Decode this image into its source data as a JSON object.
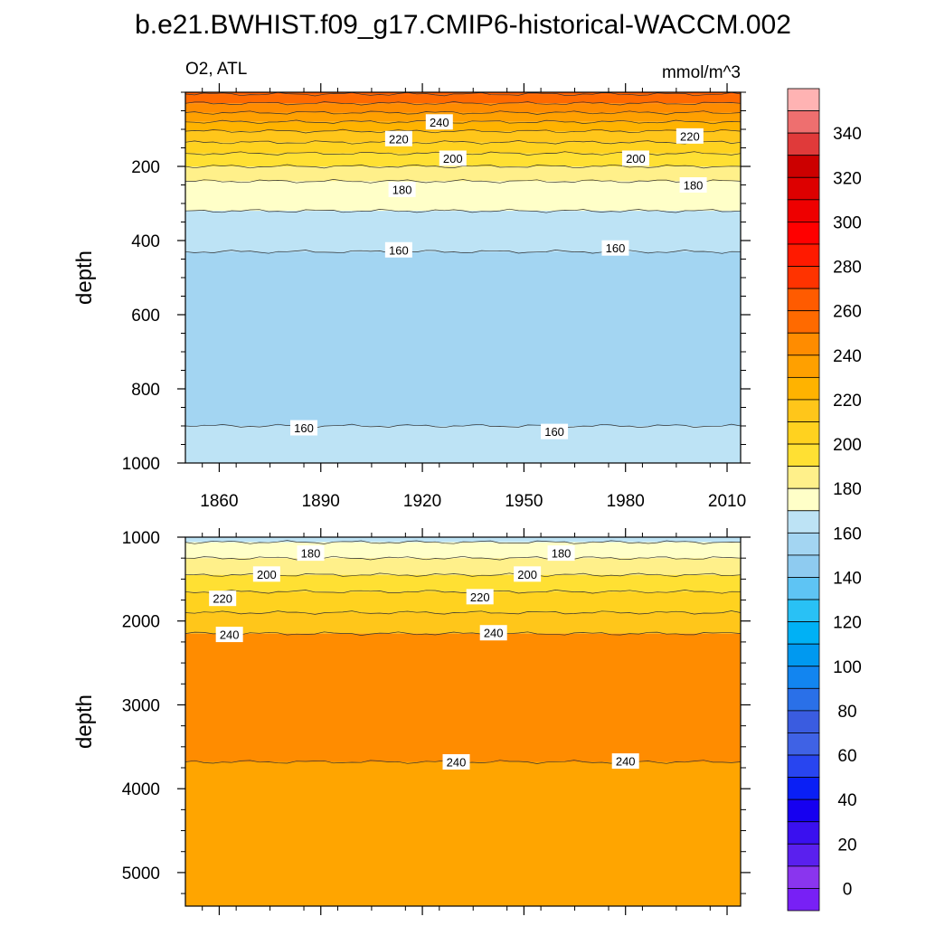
{
  "title": "b.e21.BWHIST.f09_g17.CMIP6-historical-WACCM.002",
  "chart_data": [
    {
      "type": "contour",
      "panel": "top",
      "left_label": "O2, ATL",
      "right_label": "mmol/m^3",
      "ylabel": "depth",
      "xlim": [
        1850,
        2014
      ],
      "ylim": [
        1000,
        0
      ],
      "x_ticks": [
        "1860",
        "1890",
        "1920",
        "1950",
        "1980",
        "2010"
      ],
      "x_tick_values": [
        1860,
        1890,
        1920,
        1950,
        1980,
        2010
      ],
      "y_ticks": [
        "200",
        "400",
        "600",
        "800",
        "1000"
      ],
      "y_tick_values": [
        200,
        400,
        600,
        800,
        1000
      ],
      "bands": [
        {
          "from_depth": 0,
          "to_depth": 5,
          "color": "#ff5b00"
        },
        {
          "from_depth": 5,
          "to_depth": 30,
          "color": "#ff6a00"
        },
        {
          "from_depth": 30,
          "to_depth": 55,
          "color": "#ff8c00"
        },
        {
          "from_depth": 55,
          "to_depth": 80,
          "color": "#ffa000"
        },
        {
          "from_depth": 80,
          "to_depth": 105,
          "color": "#ffb300"
        },
        {
          "from_depth": 105,
          "to_depth": 135,
          "color": "#ffc61a"
        },
        {
          "from_depth": 135,
          "to_depth": 165,
          "color": "#ffd21f"
        },
        {
          "from_depth": 165,
          "to_depth": 200,
          "color": "#ffe033"
        },
        {
          "from_depth": 200,
          "to_depth": 240,
          "color": "#fff08a"
        },
        {
          "from_depth": 240,
          "to_depth": 320,
          "color": "#ffffc8"
        },
        {
          "from_depth": 320,
          "to_depth": 430,
          "color": "#bde3f5"
        },
        {
          "from_depth": 430,
          "to_depth": 900,
          "color": "#a3d5f2"
        },
        {
          "from_depth": 900,
          "to_depth": 1000,
          "color": "#bde3f5"
        }
      ],
      "contour_labels": [
        {
          "text": "240",
          "x": 1925,
          "depth": 80
        },
        {
          "text": "220",
          "x": 1913,
          "depth": 125
        },
        {
          "text": "220",
          "x": 1999,
          "depth": 118
        },
        {
          "text": "200",
          "x": 1929,
          "depth": 178
        },
        {
          "text": "200",
          "x": 1983,
          "depth": 178
        },
        {
          "text": "180",
          "x": 1914,
          "depth": 262
        },
        {
          "text": "180",
          "x": 2000,
          "depth": 250
        },
        {
          "text": "160",
          "x": 1913,
          "depth": 425
        },
        {
          "text": "160",
          "x": 1977,
          "depth": 420
        },
        {
          "text": "160",
          "x": 1885,
          "depth": 905
        },
        {
          "text": "160",
          "x": 1959,
          "depth": 915
        }
      ]
    },
    {
      "type": "contour",
      "panel": "bottom",
      "ylabel": "depth",
      "xlim": [
        1850,
        2014
      ],
      "ylim": [
        5400,
        1000
      ],
      "y_ticks": [
        "1000",
        "2000",
        "3000",
        "4000",
        "5000"
      ],
      "y_tick_values": [
        1000,
        2000,
        3000,
        4000,
        5000
      ],
      "bands": [
        {
          "from_depth": 1000,
          "to_depth": 1060,
          "color": "#bde3f5"
        },
        {
          "from_depth": 1060,
          "to_depth": 1250,
          "color": "#ffffc8"
        },
        {
          "from_depth": 1250,
          "to_depth": 1450,
          "color": "#fff08a"
        },
        {
          "from_depth": 1450,
          "to_depth": 1650,
          "color": "#ffe033"
        },
        {
          "from_depth": 1650,
          "to_depth": 1900,
          "color": "#ffd21f"
        },
        {
          "from_depth": 1900,
          "to_depth": 2150,
          "color": "#ffc61a"
        },
        {
          "from_depth": 2150,
          "to_depth": 3680,
          "color": "#ff8c00"
        },
        {
          "from_depth": 3680,
          "to_depth": 5400,
          "color": "#ffa500"
        }
      ],
      "contour_labels": [
        {
          "text": "180",
          "x": 1887,
          "depth": 1190
        },
        {
          "text": "180",
          "x": 1961,
          "depth": 1190
        },
        {
          "text": "200",
          "x": 1874,
          "depth": 1440
        },
        {
          "text": "200",
          "x": 1951,
          "depth": 1440
        },
        {
          "text": "220",
          "x": 1861,
          "depth": 1730
        },
        {
          "text": "220",
          "x": 1937,
          "depth": 1710
        },
        {
          "text": "240",
          "x": 1863,
          "depth": 2160
        },
        {
          "text": "240",
          "x": 1941,
          "depth": 2140
        },
        {
          "text": "240",
          "x": 1930,
          "depth": 3680
        },
        {
          "text": "240",
          "x": 1980,
          "depth": 3670
        }
      ]
    },
    {
      "type": "colorbar",
      "labels": [
        "340",
        "320",
        "300",
        "280",
        "260",
        "240",
        "220",
        "200",
        "180",
        "160",
        "140",
        "120",
        "100",
        "80",
        "60",
        "40",
        "20",
        "0"
      ],
      "label_values": [
        340,
        320,
        300,
        280,
        260,
        240,
        220,
        200,
        180,
        160,
        140,
        120,
        100,
        80,
        60,
        40,
        20,
        0
      ],
      "range": [
        -10,
        360
      ],
      "step": 10,
      "colors_top_to_bottom": [
        "#ffb3b3",
        "#ee6f6f",
        "#e03a3a",
        "#cc0000",
        "#dd0000",
        "#ee0000",
        "#ff0000",
        "#ff1a00",
        "#ff3300",
        "#ff5b00",
        "#ff6a00",
        "#ff8c00",
        "#ffa000",
        "#ffb300",
        "#ffc61a",
        "#ffd21f",
        "#ffe033",
        "#fff08a",
        "#ffffc8",
        "#bde3f5",
        "#a3d5f2",
        "#8ecbf0",
        "#5ec4f4",
        "#29c1f5",
        "#00b1f5",
        "#0099f0",
        "#1285f0",
        "#2a70e8",
        "#3a5ce0",
        "#3f62e5",
        "#2845f0",
        "#0a1ff5",
        "#1600f0",
        "#3a10ef",
        "#5a20ee",
        "#8a35ee",
        "#7820f5"
      ]
    }
  ]
}
